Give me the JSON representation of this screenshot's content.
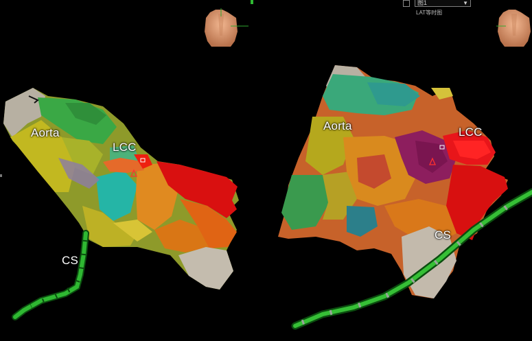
{
  "panels": {
    "left": {
      "labels": {
        "aorta": "Aorta",
        "lcc": "LCC",
        "cs": "CS"
      }
    },
    "right": {
      "labels": {
        "aorta": "Aorta",
        "lcc": "LCC",
        "cs": "CS"
      }
    }
  },
  "toolbar": {
    "map_select": "图1",
    "map_subtitle": "LAT等时图"
  },
  "colors": {
    "background": "#000000",
    "catheter": "#1f9a1f",
    "red": "#e01010",
    "orange": "#e07a12",
    "yellow": "#b8b41e",
    "green": "#3aa845",
    "teal": "#2aa79c",
    "purple": "#8a1e6a",
    "grey": "#bdb5a8"
  },
  "icons": [
    "torso-orientation-icon",
    "dropdown-caret-icon",
    "checkbox-icon",
    "ablation-marker-icon"
  ]
}
